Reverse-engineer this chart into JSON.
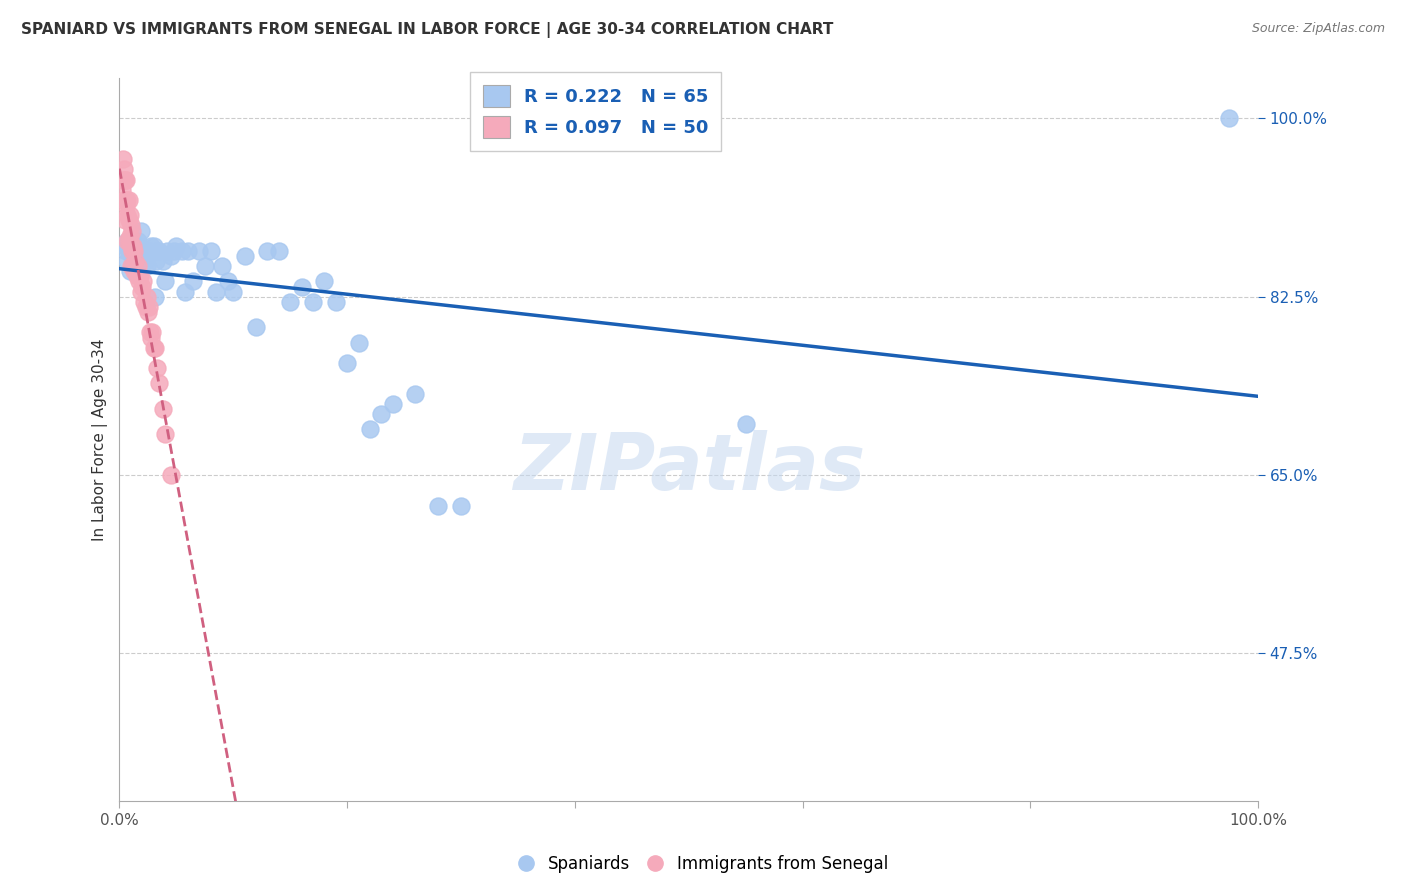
{
  "title": "SPANIARD VS IMMIGRANTS FROM SENEGAL IN LABOR FORCE | AGE 30-34 CORRELATION CHART",
  "source": "Source: ZipAtlas.com",
  "ylabel": "In Labor Force | Age 30-34",
  "legend_blue_label": "Spaniards",
  "legend_pink_label": "Immigrants from Senegal",
  "R_blue": 0.222,
  "N_blue": 65,
  "R_pink": 0.097,
  "N_pink": 50,
  "blue_color": "#a8c8f0",
  "pink_color": "#f5aabb",
  "trend_blue_color": "#1a5fb4",
  "trend_pink_color": "#d06080",
  "watermark_text": "ZIPatlas",
  "xmin": 0.0,
  "xmax": 1.0,
  "ymin": 0.33,
  "ymax": 1.04,
  "ytick_vals": [
    0.475,
    0.65,
    0.825,
    1.0
  ],
  "ytick_labels": [
    "47.5%",
    "65.0%",
    "82.5%",
    "100.0%"
  ],
  "blue_x": [
    0.005,
    0.006,
    0.006,
    0.007,
    0.007,
    0.008,
    0.008,
    0.009,
    0.01,
    0.01,
    0.012,
    0.013,
    0.015,
    0.016,
    0.017,
    0.018,
    0.019,
    0.02,
    0.022,
    0.023,
    0.024,
    0.025,
    0.027,
    0.028,
    0.03,
    0.031,
    0.032,
    0.033,
    0.035,
    0.038,
    0.04,
    0.042,
    0.045,
    0.048,
    0.05,
    0.055,
    0.058,
    0.06,
    0.065,
    0.07,
    0.075,
    0.08,
    0.085,
    0.09,
    0.095,
    0.1,
    0.11,
    0.12,
    0.13,
    0.14,
    0.15,
    0.16,
    0.17,
    0.18,
    0.19,
    0.2,
    0.21,
    0.22,
    0.23,
    0.24,
    0.26,
    0.28,
    0.3,
    0.55,
    0.975
  ],
  "blue_y": [
    0.875,
    0.87,
    0.875,
    0.88,
    0.86,
    0.87,
    0.875,
    0.85,
    0.875,
    0.88,
    0.875,
    0.87,
    0.865,
    0.88,
    0.875,
    0.865,
    0.89,
    0.87,
    0.87,
    0.86,
    0.855,
    0.87,
    0.87,
    0.875,
    0.875,
    0.825,
    0.86,
    0.87,
    0.87,
    0.86,
    0.84,
    0.87,
    0.865,
    0.87,
    0.875,
    0.87,
    0.83,
    0.87,
    0.84,
    0.87,
    0.855,
    0.87,
    0.83,
    0.855,
    0.84,
    0.83,
    0.865,
    0.795,
    0.87,
    0.87,
    0.82,
    0.835,
    0.82,
    0.84,
    0.82,
    0.76,
    0.78,
    0.695,
    0.71,
    0.72,
    0.73,
    0.62,
    0.62,
    0.7,
    1.0
  ],
  "pink_x": [
    0.002,
    0.003,
    0.003,
    0.004,
    0.004,
    0.005,
    0.005,
    0.005,
    0.006,
    0.006,
    0.007,
    0.007,
    0.007,
    0.008,
    0.008,
    0.008,
    0.009,
    0.009,
    0.01,
    0.01,
    0.01,
    0.011,
    0.011,
    0.012,
    0.012,
    0.013,
    0.013,
    0.014,
    0.015,
    0.016,
    0.017,
    0.018,
    0.019,
    0.02,
    0.021,
    0.022,
    0.023,
    0.024,
    0.025,
    0.026,
    0.027,
    0.028,
    0.029,
    0.03,
    0.031,
    0.033,
    0.035,
    0.038,
    0.04,
    0.045
  ],
  "pink_y": [
    0.93,
    0.96,
    0.94,
    0.95,
    0.92,
    0.94,
    0.92,
    0.9,
    0.94,
    0.915,
    0.92,
    0.905,
    0.88,
    0.92,
    0.9,
    0.88,
    0.905,
    0.885,
    0.895,
    0.875,
    0.855,
    0.89,
    0.87,
    0.875,
    0.855,
    0.87,
    0.85,
    0.86,
    0.845,
    0.855,
    0.84,
    0.845,
    0.83,
    0.835,
    0.84,
    0.82,
    0.815,
    0.825,
    0.81,
    0.815,
    0.79,
    0.785,
    0.79,
    0.775,
    0.775,
    0.755,
    0.74,
    0.715,
    0.69,
    0.65
  ],
  "right_tick_color": "#1a5fb4",
  "grid_color": "#cccccc",
  "spine_color": "#aaaaaa"
}
